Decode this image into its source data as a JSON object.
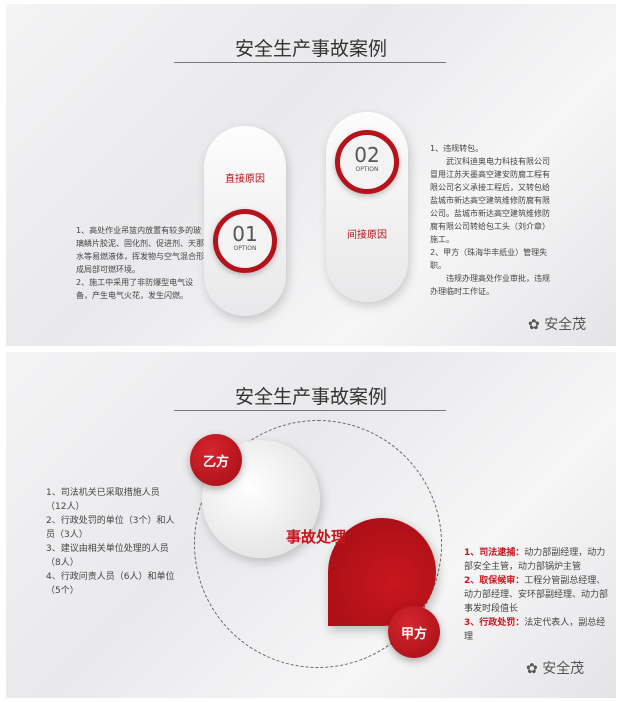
{
  "slide1": {
    "title": "安全生产事故案例",
    "left_text": [
      "1、高处作业吊篮内放置有较多的玻璃鳞片胶泥、固化剂、促进剂、天那水等易燃液体，挥发物与空气混合形成局部可燃环境。",
      "2、施工中采用了非防爆型电气设备，产生电气火花，发生闪燃。"
    ],
    "option1": {
      "label": "直接原因",
      "number": "01",
      "sub": "OPTION"
    },
    "option2": {
      "label": "间接原因",
      "number": "02",
      "sub": "OPTION"
    },
    "right_text": [
      "1、违规转包。",
      "武汉科迪奥电力科技有限公司冒用江苏天墨高空建安防腐工程有限公司名义承接工程后，又转包给盐城市新达高空建筑维修防腐有限公司。盐城市新达高空建筑维修防腐有限公司转给包工头（刘介章）施工。",
      "2、甲方（珠海华丰纸业）管理失职。",
      "违规办理高处作业审批，违规办理临时工作证。"
    ],
    "watermark": "安全茂"
  },
  "slide2": {
    "title": "安全生产事故案例",
    "party_b": "乙方",
    "party_a": "甲方",
    "center": "事故处理",
    "left_text": [
      "1、司法机关已采取措施人员（12人）",
      "2、行政处罚的单位（3个）和人员（3人）",
      "3、建议由相关单位处理的人员（8人）",
      "4、行政问责人员（6人）和单位（5个）"
    ],
    "right_items": [
      {
        "head": "1、司法逮捕：",
        "body": "动力部副经理，动力部安全主管，动力部锅炉主管"
      },
      {
        "head": "2、取保候审：",
        "body": "工程分管副总经理、动力部经理、安环部副经理、动力部事发时段值长"
      },
      {
        "head": "3、行政处罚：",
        "body": "法定代表人，副总经理"
      }
    ],
    "watermark": "安全茂"
  },
  "colors": {
    "accent": "#b5121b"
  }
}
